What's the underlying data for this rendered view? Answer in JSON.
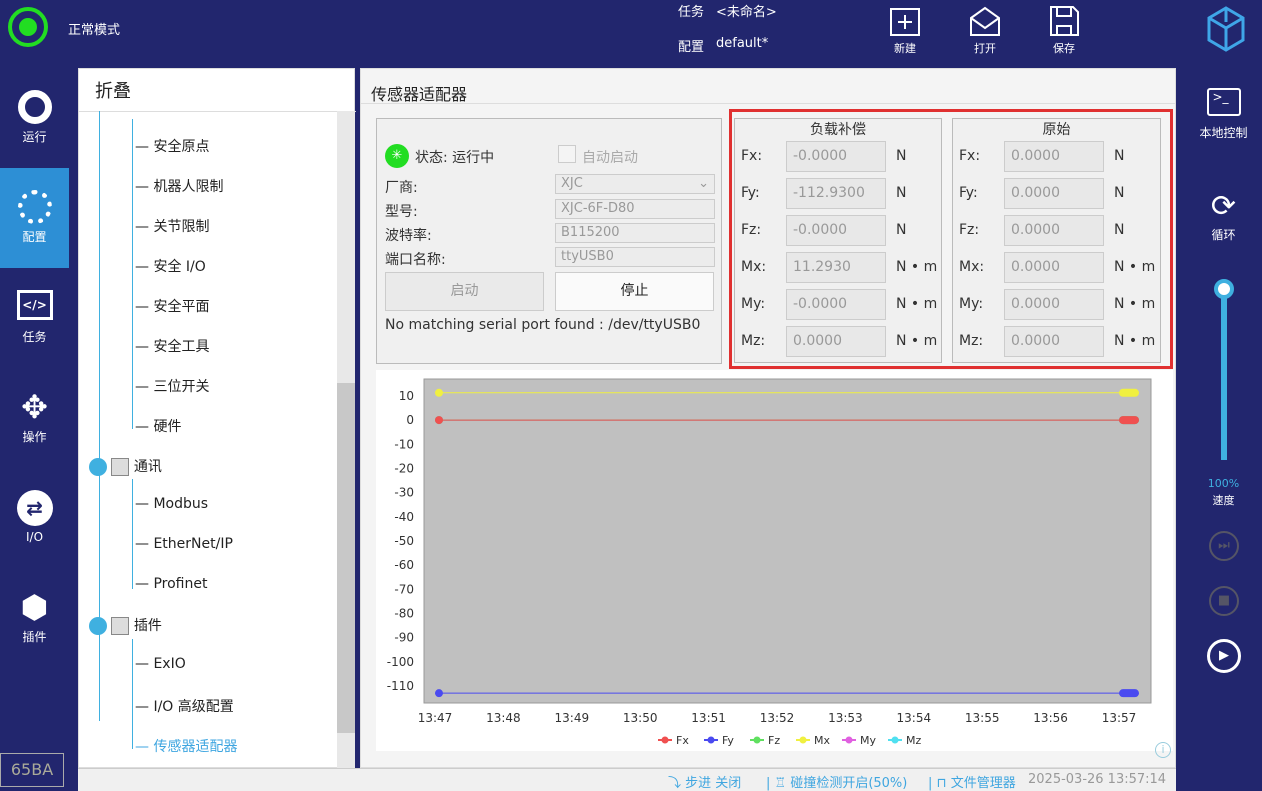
{
  "header": {
    "mode": "正常模式",
    "task_label": "任务",
    "task_value": "<未命名>",
    "config_label": "配置",
    "config_value": "default*",
    "buttons": [
      {
        "label": "新建",
        "icon": "new-file-icon"
      },
      {
        "label": "打开",
        "icon": "open-icon"
      },
      {
        "label": "保存",
        "icon": "save-icon"
      }
    ]
  },
  "left_nav": [
    {
      "label": "运行",
      "icon": "run-icon"
    },
    {
      "label": "配置",
      "icon": "config-gear-icon"
    },
    {
      "label": "任务",
      "icon": "code-icon"
    },
    {
      "label": "操作",
      "icon": "move-arrows-icon"
    },
    {
      "label": "I/O",
      "icon": "io-icon"
    },
    {
      "label": "插件",
      "icon": "plugin-box-icon"
    }
  ],
  "left_badge": "65BA",
  "tree": {
    "title": "折叠",
    "items": [
      "安全原点",
      "机器人限制",
      "关节限制",
      "安全 I/O",
      "安全平面",
      "安全工具",
      "三位开关",
      "硬件"
    ],
    "comm_group": "通讯",
    "comm_items": [
      "Modbus",
      "EtherNet/IP",
      "Profinet"
    ],
    "plugin_group": "插件",
    "plugin_items": [
      "ExIO",
      "I/O 高级配置",
      "传感器适配器"
    ]
  },
  "panel": {
    "title": "传感器适配器",
    "status": "状态: 运行中",
    "auto_start": "自动启动",
    "vendor_label": "厂商:",
    "vendor": "XJC",
    "model_label": "型号:",
    "model": "XJC-6F-D80",
    "baud_label": "波特率:",
    "baud": "B115200",
    "port_label": "端口名称:",
    "port": "ttyUSB0",
    "start": "启动",
    "stop": "停止",
    "message": "No matching serial port found : /dev/ttyUSB0"
  },
  "compensated": {
    "title": "负载补偿",
    "rows": [
      {
        "k": "Fx:",
        "v": "-0.0000",
        "u": "N"
      },
      {
        "k": "Fy:",
        "v": "-112.9300",
        "u": "N"
      },
      {
        "k": "Fz:",
        "v": "-0.0000",
        "u": "N"
      },
      {
        "k": "Mx:",
        "v": "11.2930",
        "u": "N • m"
      },
      {
        "k": "My:",
        "v": "-0.0000",
        "u": "N • m"
      },
      {
        "k": "Mz:",
        "v": "0.0000",
        "u": "N • m"
      }
    ]
  },
  "raw": {
    "title": "原始",
    "rows": [
      {
        "k": "Fx:",
        "v": "0.0000",
        "u": "N"
      },
      {
        "k": "Fy:",
        "v": "0.0000",
        "u": "N"
      },
      {
        "k": "Fz:",
        "v": "0.0000",
        "u": "N"
      },
      {
        "k": "Mx:",
        "v": "0.0000",
        "u": "N • m"
      },
      {
        "k": "My:",
        "v": "0.0000",
        "u": "N • m"
      },
      {
        "k": "Mz:",
        "v": "0.0000",
        "u": "N • m"
      }
    ]
  },
  "chart_data": {
    "type": "line",
    "ylim": [
      -117,
      17
    ],
    "yticks": [
      "10",
      "0",
      "-10",
      "-20",
      "-30",
      "-40",
      "-50",
      "-60",
      "-70",
      "-80",
      "-90",
      "-100",
      "-110"
    ],
    "xticks": [
      "13:47",
      "13:48",
      "13:49",
      "13:50",
      "13:51",
      "13:52",
      "13:53",
      "13:54",
      "13:55",
      "13:56",
      "13:57"
    ],
    "grid": false,
    "legend": "bottom",
    "series": [
      {
        "name": "Fx",
        "color": "#f05050",
        "value": 0
      },
      {
        "name": "Fy",
        "color": "#4a4af0",
        "value": -112.93
      },
      {
        "name": "Fz",
        "color": "#60e060",
        "value": 0
      },
      {
        "name": "Mx",
        "color": "#f0f040",
        "value": 11.293
      },
      {
        "name": "My",
        "color": "#e060e0",
        "value": 0
      },
      {
        "name": "Mz",
        "color": "#50e0f0",
        "value": 0
      }
    ]
  },
  "right_nav": {
    "local": "本地控制",
    "loop": "循环",
    "speed_pct": "100%",
    "speed_label": "速度",
    "speed_value": 100
  },
  "status_bar": {
    "step": "步进 关闭",
    "collision": "碰撞检测开启(50%)",
    "files": "文件管理器",
    "datetime": "2025-03-26 13:57:14"
  }
}
